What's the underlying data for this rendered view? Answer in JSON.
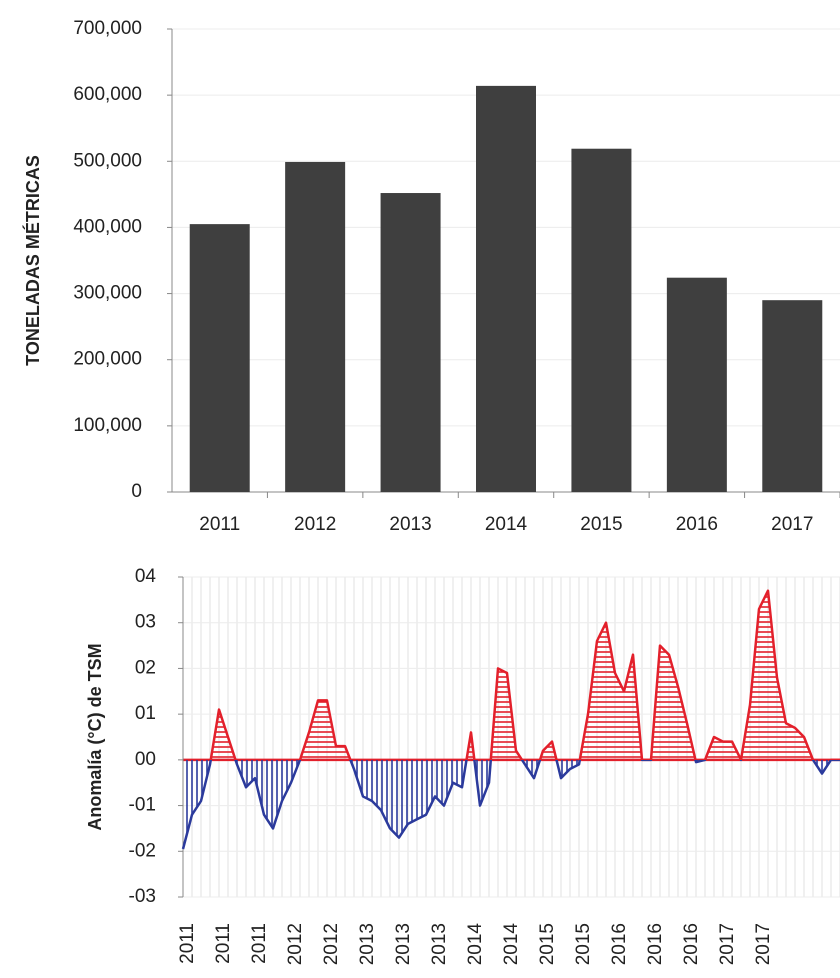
{
  "chart_data": [
    {
      "type": "bar",
      "y_label": "TONELADAS MÉTRICAS",
      "categories": [
        "2011",
        "2012",
        "2013",
        "2014",
        "2015",
        "2016",
        "2017"
      ],
      "values": [
        405000,
        499000,
        452000,
        614000,
        519000,
        324000,
        290000
      ],
      "color": "#3f3f3f",
      "ylim": [
        0,
        700000
      ],
      "yticks": [
        0,
        {
          "value": 100000,
          "label": "100,000"
        },
        {
          "value": 200000,
          "label": "200,000"
        },
        {
          "value": 300000,
          "label": "300,000"
        },
        {
          "value": 400000,
          "label": "400,000"
        },
        {
          "value": 500000,
          "label": "500,000"
        },
        {
          "value": 600000,
          "label": "600,000"
        },
        {
          "value": 700000,
          "label": "700,000"
        }
      ],
      "grid": true
    },
    {
      "type": "area",
      "y_label": "Anomalía (°C) de TSM",
      "categories": [
        "2011",
        null,
        null,
        null,
        "2011",
        null,
        null,
        null,
        "2011",
        null,
        null,
        null,
        "2012",
        null,
        null,
        null,
        "2012",
        null,
        null,
        null,
        "2013",
        null,
        null,
        null,
        "2013",
        null,
        null,
        null,
        "2013",
        null,
        null,
        null,
        "2014",
        null,
        null,
        null,
        "2014",
        null,
        null,
        null,
        "2015",
        null,
        null,
        null,
        "2015",
        null,
        null,
        null,
        "2016",
        null,
        null,
        null,
        "2016",
        null,
        null,
        null,
        "2016",
        null,
        null,
        null,
        "2017",
        null,
        null,
        null,
        "2017",
        null,
        null,
        null,
        null,
        null,
        null,
        null,
        null,
        null
      ],
      "values": [
        -1.95,
        -1.2,
        -0.9,
        -0.1,
        1.1,
        0.5,
        -0.1,
        -0.6,
        -0.4,
        -1.2,
        -1.5,
        -0.9,
        -0.5,
        0.0,
        0.6,
        1.3,
        1.3,
        0.3,
        0.3,
        -0.2,
        -0.8,
        -0.9,
        -1.1,
        -1.5,
        -1.7,
        -1.4,
        -1.3,
        -1.2,
        -0.8,
        -1.0,
        -0.5,
        -0.6,
        0.6,
        -1.0,
        -0.5,
        2.0,
        1.9,
        0.2,
        -0.1,
        -0.4,
        0.2,
        0.4,
        -0.4,
        -0.2,
        -0.1,
        1.0,
        2.6,
        3.0,
        1.9,
        1.5,
        2.3,
        0.0,
        0.0,
        2.5,
        2.3,
        1.6,
        0.8,
        -0.05,
        0.0,
        0.5,
        0.4,
        0.4,
        0.0,
        1.2,
        3.3,
        3.7,
        1.8,
        0.8,
        0.7,
        0.5,
        0.0,
        -0.3,
        0.0,
        0.0
      ],
      "positive_color": "#e3202b",
      "negative_color": "#2b3a9c",
      "ylim": [
        -3,
        4
      ],
      "yticks": [
        {
          "value": 4,
          "label": "04"
        },
        {
          "value": 3,
          "label": "03"
        },
        {
          "value": 2,
          "label": "02"
        },
        {
          "value": 1,
          "label": "01"
        },
        {
          "value": 0,
          "label": "00"
        },
        {
          "value": -1,
          "label": "-01"
        },
        {
          "value": -2,
          "label": "-02"
        },
        {
          "value": -3,
          "label": "-03"
        }
      ],
      "grid": true
    }
  ]
}
